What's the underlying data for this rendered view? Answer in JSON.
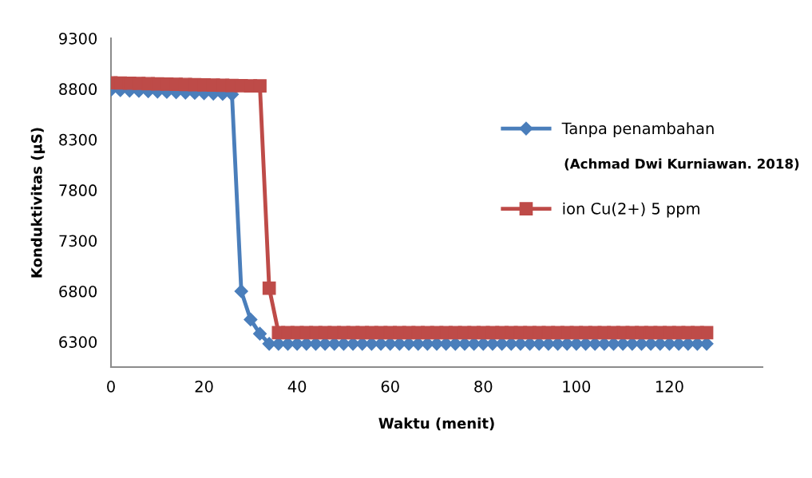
{
  "chart_data": {
    "type": "line",
    "xlabel": "Waktu (menit)",
    "ylabel": "Konduktivitas (µS)",
    "x": [
      0,
      2,
      4,
      6,
      8,
      10,
      12,
      14,
      16,
      18,
      20,
      22,
      24,
      26,
      28,
      30,
      32,
      34,
      36,
      38,
      40,
      42,
      44,
      46,
      48,
      50,
      52,
      54,
      56,
      58,
      60,
      62,
      64,
      66,
      68,
      70,
      72,
      74,
      76,
      78,
      80,
      82,
      84,
      86,
      88,
      90,
      92,
      94,
      96,
      98,
      100,
      102,
      104,
      106,
      108,
      110,
      112,
      114,
      116,
      118,
      120,
      122,
      124,
      126,
      128
    ],
    "series": [
      {
        "name": "Tanpa penambahan",
        "color": "#4a7ebb",
        "marker": "diamond",
        "values": [
          8790,
          8787,
          8783,
          8780,
          8777,
          8773,
          8770,
          8767,
          8763,
          8760,
          8757,
          8753,
          8750,
          8745,
          6800,
          6520,
          6380,
          6280,
          6280,
          6280,
          6280,
          6280,
          6280,
          6280,
          6280,
          6280,
          6280,
          6280,
          6280,
          6280,
          6280,
          6280,
          6280,
          6280,
          6280,
          6280,
          6280,
          6280,
          6280,
          6280,
          6280,
          6280,
          6280,
          6280,
          6280,
          6280,
          6280,
          6280,
          6280,
          6280,
          6280,
          6280,
          6280,
          6280,
          6280,
          6280,
          6280,
          6280,
          6280,
          6280,
          6280,
          6280,
          6280,
          6280,
          6280
        ]
      },
      {
        "name": "ion Cu(2+) 5 ppm",
        "color": "#be4b48",
        "marker": "square",
        "values": [
          8860,
          8858,
          8856,
          8854,
          8852,
          8850,
          8848,
          8846,
          8844,
          8842,
          8840,
          8838,
          8836,
          8834,
          8832,
          8830,
          8830,
          6830,
          6390,
          6390,
          6390,
          6390,
          6390,
          6390,
          6390,
          6390,
          6390,
          6390,
          6390,
          6390,
          6390,
          6390,
          6390,
          6390,
          6390,
          6390,
          6390,
          6390,
          6390,
          6390,
          6390,
          6390,
          6390,
          6390,
          6390,
          6390,
          6390,
          6390,
          6390,
          6390,
          6390,
          6390,
          6390,
          6390,
          6390,
          6390,
          6390,
          6390,
          6390,
          6390,
          6390,
          6390,
          6390,
          6390,
          6390
        ]
      }
    ],
    "xlim": [
      0,
      140
    ],
    "xticks": [
      0,
      20,
      40,
      60,
      80,
      100,
      120
    ],
    "ylim": [
      6050,
      9300
    ],
    "yticks": [
      6300,
      6800,
      7300,
      7800,
      8300,
      8800,
      9300
    ],
    "grid": false,
    "legend": "right",
    "annotations": [
      "(Achmad Dwi Kurniawan. 2018)"
    ]
  }
}
